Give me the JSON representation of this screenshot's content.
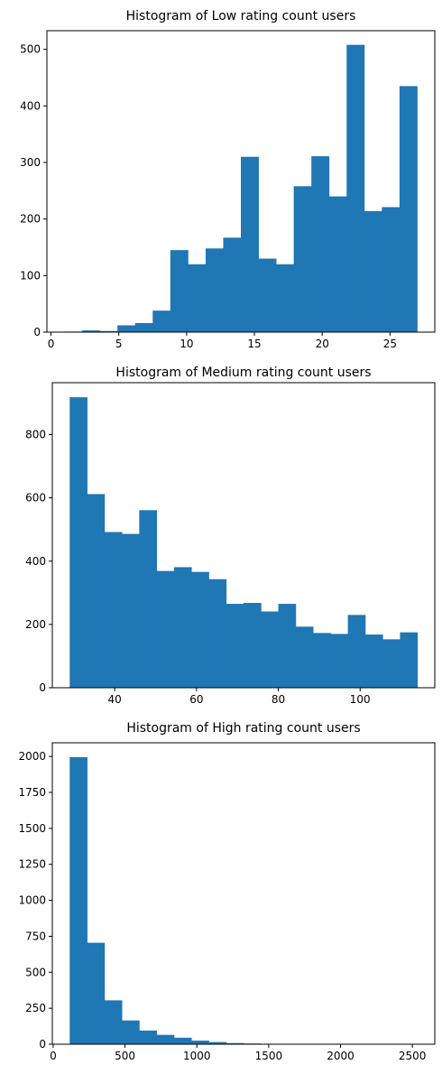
{
  "chart_data": [
    {
      "type": "bar",
      "title": "Histogram of Low rating count users",
      "xlabel": "",
      "ylabel": "",
      "bin_edges": [
        1,
        2.3,
        3.6,
        4.9,
        6.2,
        7.5,
        8.8,
        10.1,
        11.4,
        12.7,
        14.0,
        15.3,
        16.6,
        17.9,
        19.2,
        20.5,
        21.8,
        23.1,
        24.4,
        25.7,
        27
      ],
      "values": [
        1,
        3,
        2,
        12,
        16,
        38,
        145,
        120,
        148,
        167,
        310,
        130,
        120,
        258,
        311,
        240,
        508,
        214,
        221,
        435
      ],
      "xlim": [
        -0.3,
        28.3
      ],
      "ylim": [
        0,
        533
      ],
      "xticks": [
        0,
        5,
        10,
        15,
        20,
        25
      ],
      "yticks": [
        0,
        100,
        200,
        300,
        400,
        500
      ],
      "grid": false,
      "color": "#1f77b4"
    },
    {
      "type": "bar",
      "title": "Histogram of Medium rating count users",
      "xlabel": "",
      "ylabel": "",
      "bin_edges": [
        29,
        33.25,
        37.5,
        41.75,
        46,
        50.25,
        54.5,
        58.75,
        63,
        67.25,
        71.5,
        75.75,
        80,
        84.25,
        88.5,
        92.75,
        97,
        101.25,
        105.5,
        109.75,
        114
      ],
      "values": [
        918,
        612,
        492,
        486,
        561,
        369,
        381,
        366,
        343,
        265,
        268,
        241,
        265,
        193,
        173,
        170,
        230,
        168,
        153,
        175
      ],
      "xlim": [
        24.75,
        118.25
      ],
      "ylim": [
        0,
        964
      ],
      "xticks": [
        40,
        60,
        80,
        100
      ],
      "yticks": [
        0,
        200,
        400,
        600,
        800
      ],
      "grid": false,
      "color": "#1f77b4"
    },
    {
      "type": "bar",
      "title": "Histogram of High rating count users",
      "xlabel": "",
      "ylabel": "",
      "bin_edges": [
        115,
        236,
        357,
        478,
        599,
        720,
        841,
        962,
        1083,
        1204,
        1325,
        1446,
        1567,
        1688,
        1809,
        1930,
        2051,
        2172,
        2293,
        2414,
        2535
      ],
      "values": [
        1995,
        705,
        305,
        165,
        95,
        65,
        45,
        25,
        15,
        8,
        5,
        3,
        2,
        2,
        1,
        1,
        1,
        0,
        0,
        1
      ],
      "xlim": [
        -6,
        2656
      ],
      "ylim": [
        0,
        2095
      ],
      "xticks": [
        0,
        500,
        1000,
        1500,
        2000,
        2500
      ],
      "yticks": [
        0,
        250,
        500,
        750,
        1000,
        1250,
        1500,
        1750,
        2000
      ],
      "grid": false,
      "color": "#1f77b4"
    }
  ]
}
